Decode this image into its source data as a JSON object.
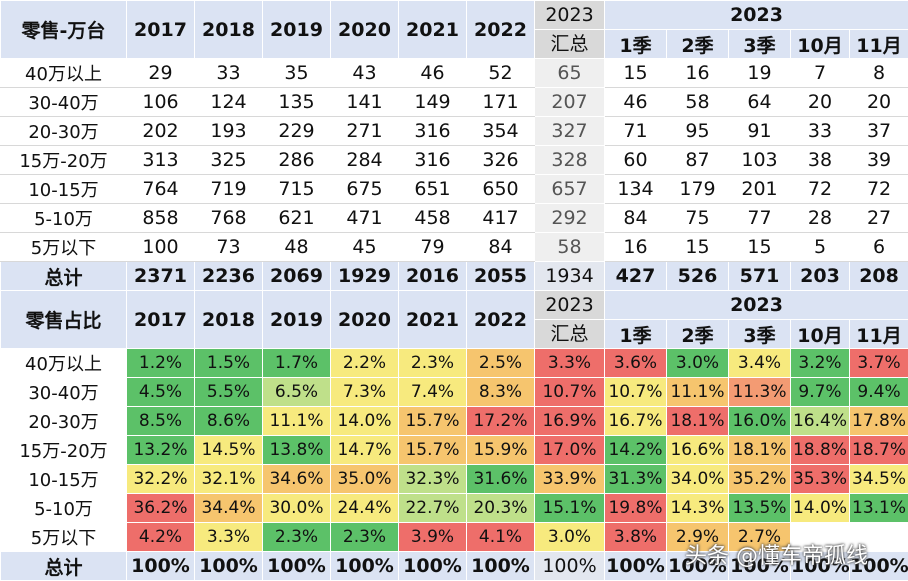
{
  "table1": {
    "corner": "零售-万台",
    "years": [
      "2017",
      "2018",
      "2019",
      "2020",
      "2021",
      "2022"
    ],
    "sum_year": "2023",
    "sum_label": "汇总",
    "group_year": "2023",
    "periods": [
      "1季",
      "2季",
      "3季",
      "10月",
      "11月"
    ],
    "rows": [
      {
        "label": "40万以上",
        "values": [
          "29",
          "33",
          "35",
          "43",
          "46",
          "52",
          "65",
          "15",
          "16",
          "19",
          "7",
          "8"
        ]
      },
      {
        "label": "30-40万",
        "values": [
          "106",
          "124",
          "135",
          "141",
          "149",
          "171",
          "207",
          "46",
          "58",
          "64",
          "20",
          "20"
        ]
      },
      {
        "label": "20-30万",
        "values": [
          "202",
          "193",
          "229",
          "271",
          "316",
          "354",
          "327",
          "71",
          "95",
          "91",
          "33",
          "37"
        ]
      },
      {
        "label": "15万-20万",
        "values": [
          "313",
          "325",
          "286",
          "284",
          "316",
          "326",
          "328",
          "60",
          "87",
          "103",
          "38",
          "39"
        ]
      },
      {
        "label": "10-15万",
        "values": [
          "764",
          "719",
          "715",
          "675",
          "651",
          "650",
          "657",
          "134",
          "179",
          "201",
          "72",
          "72"
        ]
      },
      {
        "label": "5-10万",
        "values": [
          "858",
          "768",
          "621",
          "471",
          "458",
          "417",
          "292",
          "84",
          "75",
          "77",
          "28",
          "27"
        ]
      },
      {
        "label": "5万以下",
        "values": [
          "100",
          "73",
          "48",
          "45",
          "79",
          "84",
          "58",
          "16",
          "15",
          "15",
          "5",
          "6"
        ]
      }
    ],
    "total": {
      "label": "总计",
      "values": [
        "2371",
        "2236",
        "2069",
        "1929",
        "2016",
        "2055",
        "1934",
        "427",
        "526",
        "571",
        "203",
        "208"
      ]
    }
  },
  "table2": {
    "corner": "零售占比",
    "years": [
      "2017",
      "2018",
      "2019",
      "2020",
      "2021",
      "2022"
    ],
    "sum_year": "2023",
    "sum_label": "汇总",
    "group_year": "2023",
    "periods": [
      "1季",
      "2季",
      "3季",
      "10月",
      "11月"
    ],
    "rows": [
      {
        "label": "40万以上",
        "values": [
          "1.2%",
          "1.5%",
          "1.7%",
          "2.2%",
          "2.3%",
          "2.5%",
          "3.3%",
          "3.6%",
          "3.0%",
          "3.4%",
          "3.2%",
          "3.7%"
        ]
      },
      {
        "label": "30-40万",
        "values": [
          "4.5%",
          "5.5%",
          "6.5%",
          "7.3%",
          "7.4%",
          "8.3%",
          "10.7%",
          "10.7%",
          "11.1%",
          "11.3%",
          "9.7%",
          "9.4%"
        ]
      },
      {
        "label": "20-30万",
        "values": [
          "8.5%",
          "8.6%",
          "11.1%",
          "14.0%",
          "15.7%",
          "17.2%",
          "16.9%",
          "16.7%",
          "18.1%",
          "16.0%",
          "16.4%",
          "17.8%"
        ]
      },
      {
        "label": "15万-20万",
        "values": [
          "13.2%",
          "14.5%",
          "13.8%",
          "14.7%",
          "15.7%",
          "15.9%",
          "17.0%",
          "14.2%",
          "16.6%",
          "18.1%",
          "18.8%",
          "18.7%"
        ]
      },
      {
        "label": "10-15万",
        "values": [
          "32.2%",
          "32.1%",
          "34.6%",
          "35.0%",
          "32.3%",
          "31.6%",
          "33.9%",
          "31.3%",
          "34.0%",
          "35.2%",
          "35.3%",
          "34.5%"
        ]
      },
      {
        "label": "5-10万",
        "values": [
          "36.2%",
          "34.4%",
          "30.0%",
          "24.4%",
          "22.7%",
          "20.3%",
          "15.1%",
          "19.8%",
          "14.3%",
          "13.5%",
          "14.0%",
          "13.1%"
        ]
      },
      {
        "label": "5万以下",
        "values": [
          "4.2%",
          "3.3%",
          "2.3%",
          "2.3%",
          "3.9%",
          "4.1%",
          "3.0%",
          "3.8%",
          "2.9%",
          "2.7%",
          "",
          ""
        ]
      }
    ],
    "total": {
      "label": "总计",
      "values": [
        "100%",
        "100%",
        "100%",
        "100%",
        "100%",
        "100%",
        "100%",
        "100%",
        "100%",
        "100%",
        "100%",
        "100%"
      ]
    }
  },
  "watermark": "头条 @懂车帝孤线",
  "colors": {
    "header": "#dbe3f3",
    "green": "#5cc168",
    "light_green": "#bfe08a",
    "yellow": "#f7ea7e",
    "orange": "#f6c56e",
    "red": "#ee6e6a"
  }
}
